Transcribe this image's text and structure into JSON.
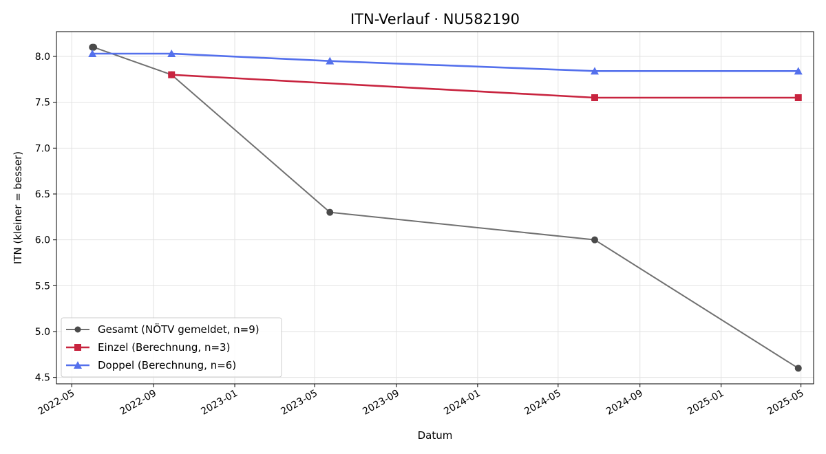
{
  "chart_data": {
    "type": "line",
    "title": "ITN-Verlauf · NU582190",
    "xlabel": "Datum",
    "ylabel": "ITN  (kleiner = besser)",
    "x_ticks": [
      "2022-05",
      "2022-09",
      "2023-01",
      "2023-05",
      "2023-09",
      "2024-01",
      "2024-05",
      "2024-09",
      "2025-01",
      "2025-05"
    ],
    "y_ticks": [
      "4.5",
      "5.0",
      "5.5",
      "6.0",
      "6.5",
      "7.0",
      "7.5",
      "8.0"
    ],
    "ylim": [
      4.43,
      8.27
    ],
    "xlim": [
      "2022-04-08",
      "2025-05-20"
    ],
    "grid": true,
    "legend_position": "lower-left",
    "series": [
      {
        "name": "Gesamt (NÖTV gemeldet, n=9)",
        "color": "#707070",
        "marker": "circle",
        "points": [
          {
            "x": "2022-06-01",
            "y": 8.1
          },
          {
            "x": "2022-06-03",
            "y": 8.1
          },
          {
            "x": "2022-09-28",
            "y": 7.8
          },
          {
            "x": "2023-05-24",
            "y": 6.3
          },
          {
            "x": "2024-06-25",
            "y": 6.0
          },
          {
            "x": "2025-04-27",
            "y": 4.6
          }
        ]
      },
      {
        "name": "Einzel (Berechnung, n=3)",
        "color": "#c8243f",
        "marker": "square",
        "points": [
          {
            "x": "2022-09-28",
            "y": 7.8
          },
          {
            "x": "2024-06-25",
            "y": 7.55
          },
          {
            "x": "2025-04-27",
            "y": 7.55
          }
        ]
      },
      {
        "name": "Doppel (Berechnung, n=6)",
        "color": "#5470ec",
        "marker": "triangle",
        "points": [
          {
            "x": "2022-06-01",
            "y": 8.03
          },
          {
            "x": "2022-09-28",
            "y": 8.03
          },
          {
            "x": "2023-05-24",
            "y": 7.95
          },
          {
            "x": "2024-06-25",
            "y": 7.84
          },
          {
            "x": "2025-04-27",
            "y": 7.84
          }
        ]
      }
    ]
  }
}
